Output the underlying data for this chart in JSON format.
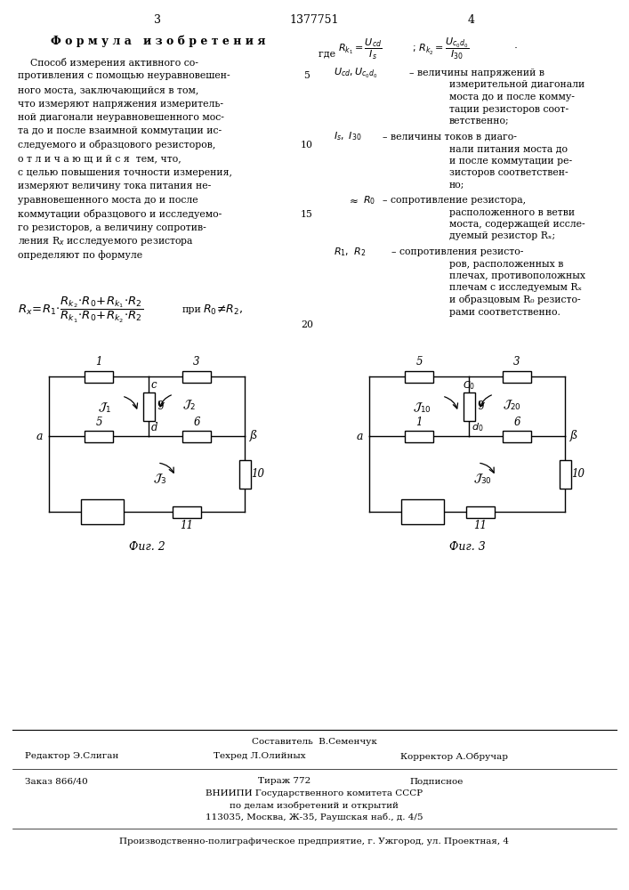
{
  "page_number_left": "3",
  "page_number_center": "1377751",
  "page_number_right": "4",
  "background_color": "#ffffff",
  "fig2_caption": "Фиг. 2",
  "fig3_caption": "Фиг. 3"
}
